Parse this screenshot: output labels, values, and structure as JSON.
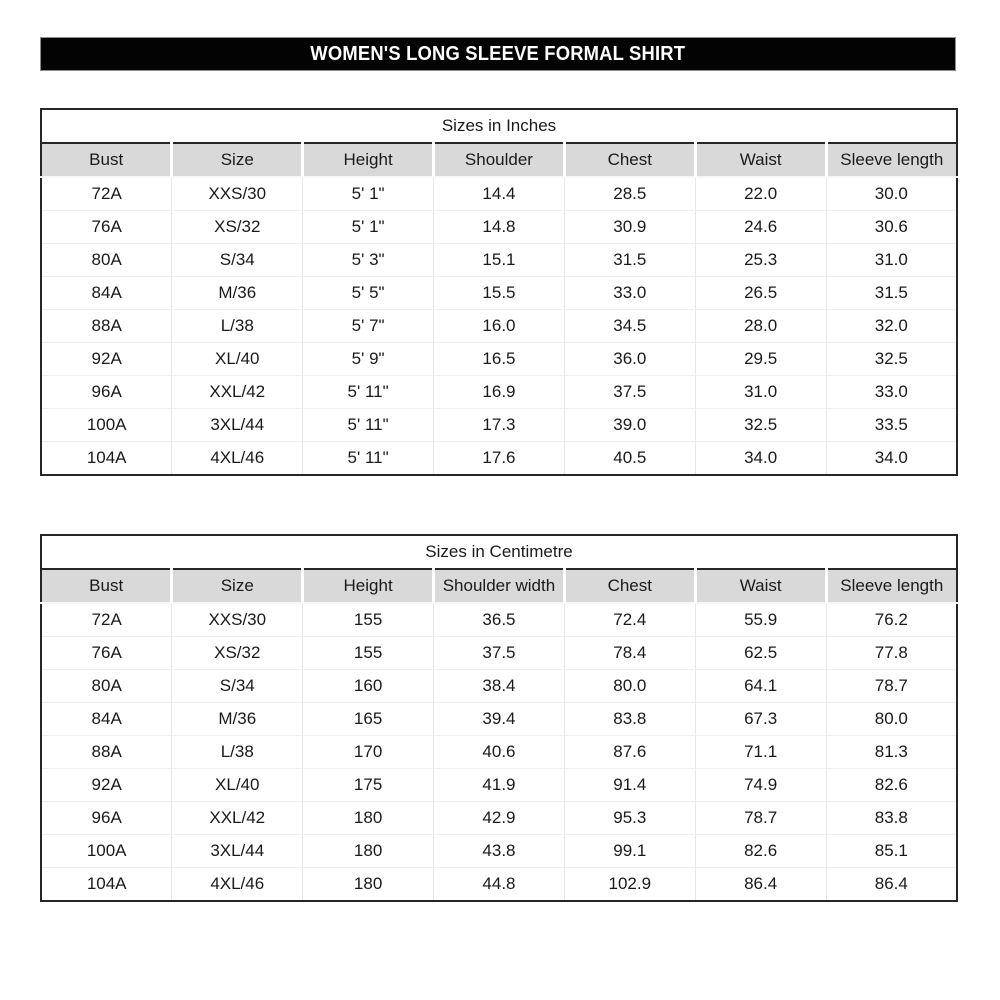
{
  "page_title": "WOMEN'S LONG SLEEVE FORMAL SHIRT",
  "colors": {
    "title_bar_bg": "#030303",
    "title_bar_text": "#ffffff",
    "title_bar_border": "#8c8c8c",
    "header_row_bg": "#d9d9d9",
    "table_outer_border": "#262626",
    "row_divider": "#efefef"
  },
  "tables": [
    {
      "title": "Sizes in Inches",
      "headers": [
        "Bust",
        "Size",
        "Height",
        "Shoulder",
        "Chest",
        "Waist",
        "Sleeve length"
      ],
      "rows": [
        [
          "72A",
          "XXS/30",
          "5' 1\"",
          "14.4",
          "28.5",
          "22.0",
          "30.0"
        ],
        [
          "76A",
          "XS/32",
          "5' 1\"",
          "14.8",
          "30.9",
          "24.6",
          "30.6"
        ],
        [
          "80A",
          "S/34",
          "5' 3\"",
          "15.1",
          "31.5",
          "25.3",
          "31.0"
        ],
        [
          "84A",
          "M/36",
          "5' 5\"",
          "15.5",
          "33.0",
          "26.5",
          "31.5"
        ],
        [
          "88A",
          "L/38",
          "5' 7\"",
          "16.0",
          "34.5",
          "28.0",
          "32.0"
        ],
        [
          "92A",
          "XL/40",
          "5' 9\"",
          "16.5",
          "36.0",
          "29.5",
          "32.5"
        ],
        [
          "96A",
          "XXL/42",
          "5' 11\"",
          "16.9",
          "37.5",
          "31.0",
          "33.0"
        ],
        [
          "100A",
          "3XL/44",
          "5' 11\"",
          "17.3",
          "39.0",
          "32.5",
          "33.5"
        ],
        [
          "104A",
          "4XL/46",
          "5' 11\"",
          "17.6",
          "40.5",
          "34.0",
          "34.0"
        ]
      ]
    },
    {
      "title": "Sizes in Centimetre",
      "headers": [
        "Bust",
        "Size",
        "Height",
        "Shoulder width",
        "Chest",
        "Waist",
        "Sleeve length"
      ],
      "rows": [
        [
          "72A",
          "XXS/30",
          "155",
          "36.5",
          "72.4",
          "55.9",
          "76.2"
        ],
        [
          "76A",
          "XS/32",
          "155",
          "37.5",
          "78.4",
          "62.5",
          "77.8"
        ],
        [
          "80A",
          "S/34",
          "160",
          "38.4",
          "80.0",
          "64.1",
          "78.7"
        ],
        [
          "84A",
          "M/36",
          "165",
          "39.4",
          "83.8",
          "67.3",
          "80.0"
        ],
        [
          "88A",
          "L/38",
          "170",
          "40.6",
          "87.6",
          "71.1",
          "81.3"
        ],
        [
          "92A",
          "XL/40",
          "175",
          "41.9",
          "91.4",
          "74.9",
          "82.6"
        ],
        [
          "96A",
          "XXL/42",
          "180",
          "42.9",
          "95.3",
          "78.7",
          "83.8"
        ],
        [
          "100A",
          "3XL/44",
          "180",
          "43.8",
          "99.1",
          "82.6",
          "85.1"
        ],
        [
          "104A",
          "4XL/46",
          "180",
          "44.8",
          "102.9",
          "86.4",
          "86.4"
        ]
      ]
    }
  ]
}
